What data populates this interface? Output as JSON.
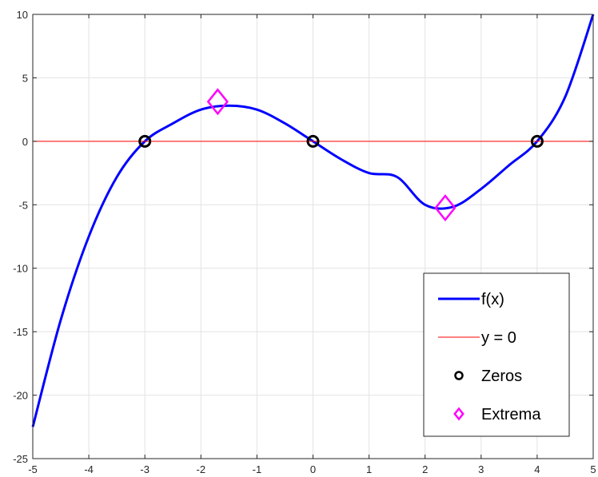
{
  "chart_data": {
    "type": "line",
    "title": "",
    "xlabel": "",
    "ylabel": "",
    "xlim": [
      -5,
      5
    ],
    "ylim": [
      -25,
      10
    ],
    "grid": true,
    "xticks": [
      -5,
      -4,
      -3,
      -2,
      -1,
      0,
      1,
      2,
      3,
      4,
      5
    ],
    "yticks": [
      -25,
      -20,
      -15,
      -10,
      -5,
      0,
      5,
      10
    ],
    "series": [
      {
        "name": "f(x)",
        "kind": "line",
        "color": "#0000ff",
        "x": [
          -5,
          -4.5,
          -4,
          -3.5,
          -3,
          -2.5,
          -2,
          -1.5,
          -1,
          -0.5,
          0,
          0.5,
          1,
          1.5,
          2,
          2.5,
          3,
          3.5,
          4,
          4.5,
          5
        ],
        "y": [
          -22.5,
          -14.06,
          -7.5,
          -2.81,
          0,
          1.41,
          2.5,
          2.81,
          2.5,
          1.41,
          0,
          -1.41,
          -2.5,
          -2.81,
          -5.0,
          -5.16,
          -3.75,
          -1.88,
          0,
          3.5,
          10
        ]
      },
      {
        "name": "y = 0",
        "kind": "line",
        "color": "#ff0000",
        "x": [
          -5,
          5
        ],
        "y": [
          0,
          0
        ]
      },
      {
        "name": "Zeros",
        "kind": "marker",
        "marker": "circle",
        "color": "#000000",
        "x": [
          -3,
          0,
          4
        ],
        "y": [
          0,
          0,
          0
        ]
      },
      {
        "name": "Extrema",
        "kind": "marker",
        "marker": "diamond",
        "color": "#ff00ff",
        "x": [
          -1.7,
          2.36
        ],
        "y": [
          3.12,
          -5.24
        ]
      }
    ],
    "legend": {
      "placement": "bottom-right",
      "entries": [
        "f(x)",
        "y = 0",
        "Zeros",
        "Extrema"
      ]
    }
  }
}
